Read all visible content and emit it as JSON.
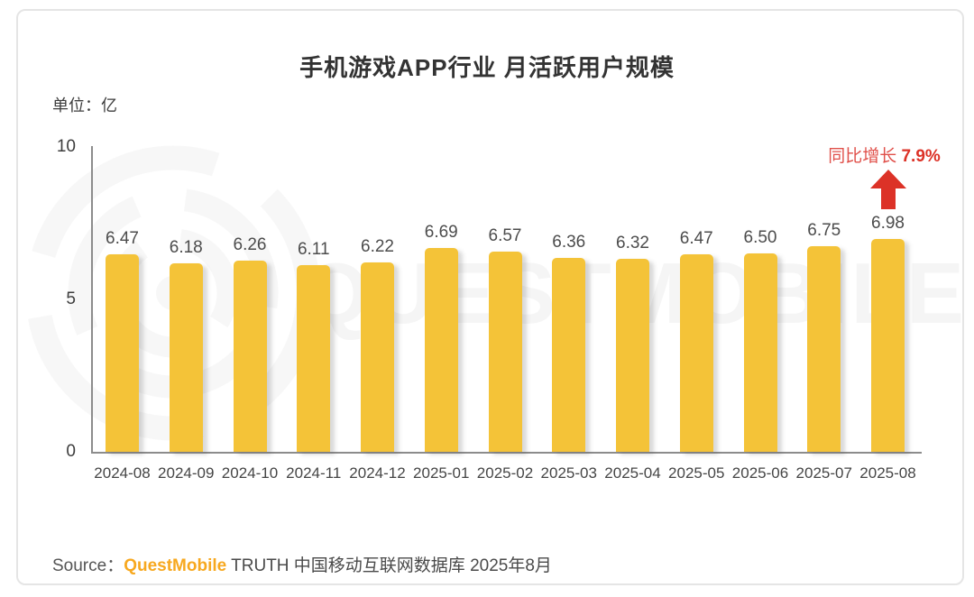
{
  "title": "手机游戏APP行业 月活跃用户规模",
  "unit_label": "单位：亿",
  "annotation": {
    "label": "同比增长",
    "value": "7.9%"
  },
  "watermark": {
    "text": "QUESTMOBILE"
  },
  "source": {
    "prefix": "Source：",
    "brand": "QuestMobile",
    "rest": " TRUTH 中国移动互联网数据库 2025年8月"
  },
  "colors": {
    "bar": "#f4c338",
    "accent_red": "#dc3227",
    "brand_orange": "#f7a81f",
    "axis": "#8c8c8c"
  },
  "chart_data": {
    "type": "bar",
    "title": "手机游戏APP行业 月活跃用户规模",
    "ylabel": "单位：亿",
    "categories": [
      "2024-08",
      "2024-09",
      "2024-10",
      "2024-11",
      "2024-12",
      "2025-01",
      "2025-02",
      "2025-03",
      "2025-04",
      "2025-05",
      "2025-06",
      "2025-07",
      "2025-08"
    ],
    "values": [
      6.47,
      6.18,
      6.26,
      6.11,
      6.22,
      6.69,
      6.57,
      6.36,
      6.32,
      6.47,
      6.5,
      6.75,
      6.98
    ],
    "ylim": [
      0,
      10
    ],
    "yticks": [
      0,
      5,
      10
    ],
    "grid": false,
    "annotation": "同比增长 7.9%"
  }
}
